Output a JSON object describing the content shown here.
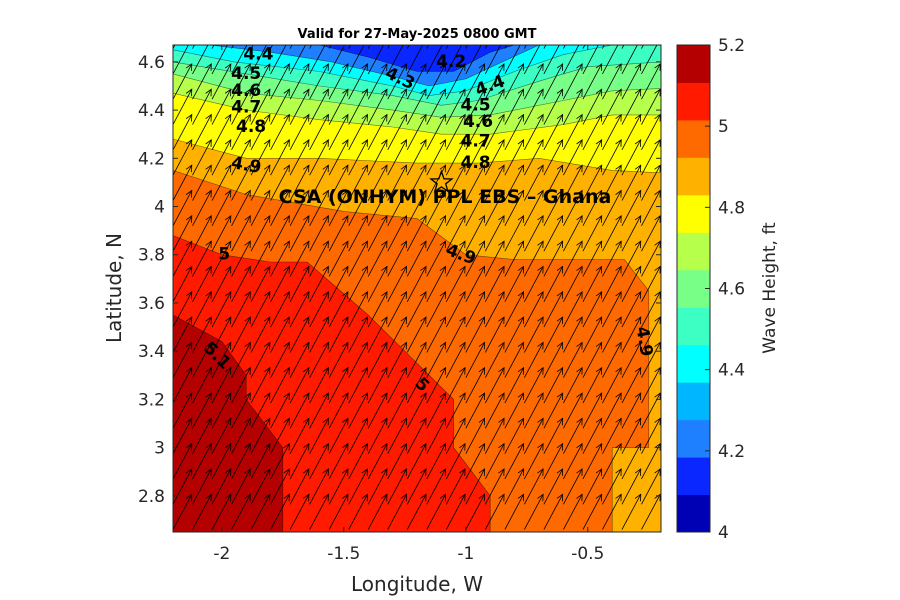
{
  "chart_data": {
    "type": "heatmap",
    "title": "Valid for 27-May-2025 0800 GMT",
    "xlabel": "Longitude, W",
    "ylabel": "Latitude, N",
    "xlim": [
      -2.2,
      -0.2
    ],
    "ylim": [
      2.65,
      4.67
    ],
    "x_ticks": [
      {
        "value": -2,
        "label": "-2"
      },
      {
        "value": -1.5,
        "label": "-1.5"
      },
      {
        "value": -1,
        "label": "-1"
      },
      {
        "value": -0.5,
        "label": "-0.5"
      }
    ],
    "y_ticks": [
      {
        "value": 2.8,
        "label": "2.8"
      },
      {
        "value": 3,
        "label": "3"
      },
      {
        "value": 3.2,
        "label": "3.2"
      },
      {
        "value": 3.4,
        "label": "3.4"
      },
      {
        "value": 3.6,
        "label": "3.6"
      },
      {
        "value": 3.8,
        "label": "3.8"
      },
      {
        "value": 4,
        "label": "4"
      },
      {
        "value": 4.2,
        "label": "4.2"
      },
      {
        "value": 4.4,
        "label": "4.4"
      },
      {
        "value": 4.6,
        "label": "4.6"
      }
    ],
    "colorbar": {
      "label": "Wave Height, ft",
      "min": 4.0,
      "max": 5.2,
      "levels": [
        4.0,
        4.1,
        4.2,
        4.3,
        4.4,
        4.5,
        4.6,
        4.7,
        4.8,
        4.9,
        5.0,
        5.1,
        5.2
      ],
      "colors": [
        "#0000b4",
        "#0b27ff",
        "#1f80ff",
        "#00b7ff",
        "#00ffff",
        "#3dffc4",
        "#78ff88",
        "#b6ff4b",
        "#ffff00",
        "#ffb100",
        "#ff6a00",
        "#ff1a00",
        "#b40000"
      ],
      "ticks": [
        {
          "value": 4.0,
          "label": "4"
        },
        {
          "value": 4.2,
          "label": "4.2"
        },
        {
          "value": 4.4,
          "label": "4.4"
        },
        {
          "value": 4.6,
          "label": "4.6"
        },
        {
          "value": 4.8,
          "label": "4.8"
        },
        {
          "value": 5.0,
          "label": "5"
        },
        {
          "value": 5.2,
          "label": "5.2"
        }
      ]
    },
    "regions": [
      {
        "level": 4.9,
        "color": "#ffb100",
        "points": [
          [
            -2.2,
            2.65
          ],
          [
            -0.2,
            2.65
          ],
          [
            -0.2,
            4.67
          ],
          [
            -2.2,
            4.67
          ]
        ]
      },
      {
        "level": 4.8,
        "color": "#ffff00",
        "points": [
          [
            -2.2,
            4.28
          ],
          [
            -1.9,
            4.2
          ],
          [
            -1.6,
            4.2
          ],
          [
            -1.2,
            4.18
          ],
          [
            -0.95,
            4.18
          ],
          [
            -0.7,
            4.2
          ],
          [
            -0.4,
            4.15
          ],
          [
            -0.2,
            4.14
          ],
          [
            -0.2,
            4.67
          ],
          [
            -2.2,
            4.67
          ]
        ]
      },
      {
        "level": 5.0,
        "color": "#ff6a00",
        "points": [
          [
            -2.2,
            4.15
          ],
          [
            -1.9,
            4.05
          ],
          [
            -1.5,
            3.98
          ],
          [
            -1.2,
            3.95
          ],
          [
            -1.0,
            3.8
          ],
          [
            -0.8,
            3.78
          ],
          [
            -0.35,
            3.78
          ],
          [
            -0.25,
            3.65
          ],
          [
            -0.25,
            3.0
          ],
          [
            -0.4,
            3.0
          ],
          [
            -0.4,
            2.65
          ],
          [
            -2.2,
            2.65
          ]
        ]
      },
      {
        "level": 5.1,
        "color": "#ff1a00",
        "points": [
          [
            -2.2,
            3.88
          ],
          [
            -2.0,
            3.8
          ],
          [
            -1.8,
            3.77
          ],
          [
            -1.65,
            3.77
          ],
          [
            -1.4,
            3.55
          ],
          [
            -1.2,
            3.35
          ],
          [
            -1.05,
            3.2
          ],
          [
            -1.05,
            3.0
          ],
          [
            -0.9,
            2.8
          ],
          [
            -0.9,
            2.65
          ],
          [
            -2.2,
            2.65
          ]
        ]
      },
      {
        "level": 5.2,
        "color": "#b40000",
        "points": [
          [
            -2.2,
            3.55
          ],
          [
            -2.0,
            3.44
          ],
          [
            -1.9,
            3.3
          ],
          [
            -1.9,
            3.2
          ],
          [
            -1.75,
            3.0
          ],
          [
            -1.75,
            2.65
          ],
          [
            -2.2,
            2.65
          ]
        ]
      },
      {
        "level": 4.7,
        "color": "#b6ff4b",
        "points": [
          [
            -2.2,
            4.47
          ],
          [
            -1.9,
            4.4
          ],
          [
            -1.6,
            4.36
          ],
          [
            -1.3,
            4.33
          ],
          [
            -1.1,
            4.3
          ],
          [
            -0.9,
            4.3
          ],
          [
            -0.6,
            4.34
          ],
          [
            -0.4,
            4.38
          ],
          [
            -0.2,
            4.38
          ],
          [
            -0.2,
            4.67
          ],
          [
            -2.2,
            4.67
          ]
        ]
      },
      {
        "level": 4.6,
        "color": "#78ff88",
        "points": [
          [
            -2.2,
            4.55
          ],
          [
            -1.9,
            4.47
          ],
          [
            -1.6,
            4.44
          ],
          [
            -1.3,
            4.4
          ],
          [
            -1.1,
            4.37
          ],
          [
            -0.9,
            4.38
          ],
          [
            -0.6,
            4.44
          ],
          [
            -0.4,
            4.48
          ],
          [
            -0.2,
            4.49
          ],
          [
            -0.2,
            4.67
          ],
          [
            -2.2,
            4.67
          ]
        ]
      },
      {
        "level": 4.5,
        "color": "#3dffc4",
        "points": [
          [
            -2.2,
            4.6
          ],
          [
            -1.9,
            4.55
          ],
          [
            -1.6,
            4.5
          ],
          [
            -1.3,
            4.46
          ],
          [
            -1.1,
            4.42
          ],
          [
            -0.95,
            4.44
          ],
          [
            -0.7,
            4.52
          ],
          [
            -0.5,
            4.58
          ],
          [
            -0.2,
            4.6
          ],
          [
            -0.2,
            4.67
          ],
          [
            -2.2,
            4.67
          ]
        ]
      },
      {
        "level": 4.4,
        "color": "#00ffff",
        "points": [
          [
            -2.2,
            4.65
          ],
          [
            -1.95,
            4.6
          ],
          [
            -1.6,
            4.56
          ],
          [
            -1.3,
            4.5
          ],
          [
            -1.15,
            4.46
          ],
          [
            -1.0,
            4.48
          ],
          [
            -0.8,
            4.56
          ],
          [
            -0.6,
            4.63
          ],
          [
            -0.4,
            4.67
          ],
          [
            -2.2,
            4.67
          ]
        ]
      },
      {
        "level": 4.3,
        "color": "#1f80ff",
        "points": [
          [
            -2.05,
            4.67
          ],
          [
            -1.8,
            4.64
          ],
          [
            -1.55,
            4.6
          ],
          [
            -1.3,
            4.54
          ],
          [
            -1.15,
            4.5
          ],
          [
            -1.0,
            4.53
          ],
          [
            -0.85,
            4.6
          ],
          [
            -0.7,
            4.67
          ]
        ]
      },
      {
        "level": 4.2,
        "color": "#0b27ff",
        "points": [
          [
            -1.6,
            4.67
          ],
          [
            -1.4,
            4.62
          ],
          [
            -1.2,
            4.56
          ],
          [
            -1.05,
            4.56
          ],
          [
            -0.9,
            4.64
          ],
          [
            -0.8,
            4.67
          ]
        ]
      }
    ],
    "contour_labels": [
      {
        "text": "4.4",
        "x": -1.85,
        "y": 4.63,
        "angle": 0
      },
      {
        "text": "4.5",
        "x": -1.9,
        "y": 4.55,
        "angle": 0
      },
      {
        "text": "4.6",
        "x": -1.9,
        "y": 4.48,
        "angle": 0
      },
      {
        "text": "4.7",
        "x": -1.9,
        "y": 4.41,
        "angle": 0
      },
      {
        "text": "4.8",
        "x": -1.88,
        "y": 4.33,
        "angle": 0
      },
      {
        "text": "4.9",
        "x": -1.9,
        "y": 4.17,
        "angle": 10
      },
      {
        "text": "4.3",
        "x": -1.27,
        "y": 4.53,
        "angle": 25
      },
      {
        "text": "4.2",
        "x": -1.06,
        "y": 4.6,
        "angle": 0
      },
      {
        "text": "4.4",
        "x": -0.9,
        "y": 4.5,
        "angle": -20
      },
      {
        "text": "4.5",
        "x": -0.96,
        "y": 4.42,
        "angle": 0
      },
      {
        "text": "4.6",
        "x": -0.95,
        "y": 4.35,
        "angle": 0
      },
      {
        "text": "4.7",
        "x": -0.96,
        "y": 4.27,
        "angle": 0
      },
      {
        "text": "4.8",
        "x": -0.96,
        "y": 4.18,
        "angle": 0
      },
      {
        "text": "4.9",
        "x": -1.02,
        "y": 3.8,
        "angle": 20
      },
      {
        "text": "5",
        "x": -1.99,
        "y": 3.8,
        "angle": 0
      },
      {
        "text": "5.1",
        "x": -2.02,
        "y": 3.38,
        "angle": 45
      },
      {
        "text": "5",
        "x": -1.18,
        "y": 3.26,
        "angle": 45
      },
      {
        "text": "4.9",
        "x": -0.27,
        "y": 3.44,
        "angle": 80
      }
    ],
    "site_label": "CSA (ONHYM) PPL EBS  – Ghana",
    "site_marker": {
      "x": -1.1,
      "y": 4.1
    },
    "vectors": {
      "x_start": -2.2,
      "x_step": 0.08,
      "y_start": 2.66,
      "y_step": 0.105,
      "direction_deg_from_east": 62
    }
  }
}
